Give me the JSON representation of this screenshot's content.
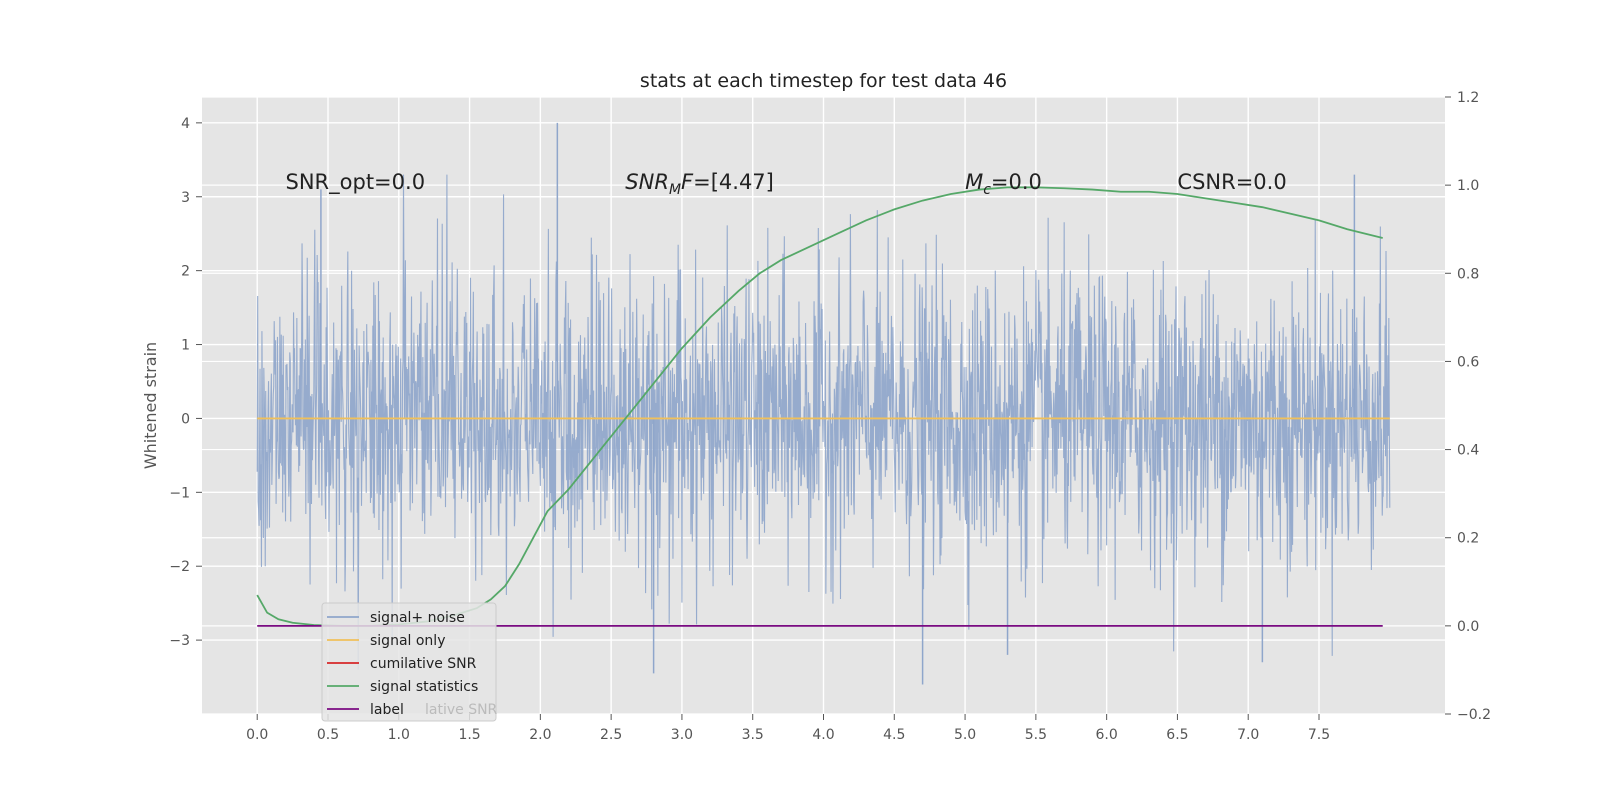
{
  "chart_data": {
    "type": "line",
    "title": "stats at each timestep for test data 46",
    "ylabel": "Whitened strain",
    "xlabel": "",
    "xlim": [
      -0.39,
      8.39
    ],
    "ylim": [
      -4.0,
      4.35
    ],
    "y2lim": [
      -0.2,
      1.2
    ],
    "x_ticks": [
      "0.0",
      "0.5",
      "1.0",
      "1.5",
      "2.0",
      "2.5",
      "3.0",
      "3.5",
      "4.0",
      "4.5",
      "5.0",
      "5.5",
      "6.0",
      "6.5",
      "7.0",
      "7.5"
    ],
    "y_ticks": [
      {
        "v": 4,
        "label": "4"
      },
      {
        "v": 3,
        "label": "3"
      },
      {
        "v": 2,
        "label": "2"
      },
      {
        "v": 1,
        "label": "1"
      },
      {
        "v": 0,
        "label": "0"
      },
      {
        "v": -1,
        "label": "−1"
      },
      {
        "v": -2,
        "label": "−2"
      },
      {
        "v": -3,
        "label": "−3"
      }
    ],
    "y2_ticks": [
      {
        "v": 1.2,
        "label": "1.2"
      },
      {
        "v": 1.0,
        "label": "1.0"
      },
      {
        "v": 0.8,
        "label": "0.8"
      },
      {
        "v": 0.6,
        "label": "0.6"
      },
      {
        "v": 0.4,
        "label": "0.4"
      },
      {
        "v": 0.2,
        "label": "0.2"
      },
      {
        "v": 0.0,
        "label": "0.0"
      },
      {
        "v": -0.2,
        "label": "−0.2"
      }
    ],
    "grid": true,
    "legend_position": "lower-left",
    "noise_range": [
      0.0,
      8.0
    ],
    "series": [
      {
        "name": "signal+ noise",
        "color": "#8fa6cb",
        "axis": "left",
        "note_visual": "dense noise approx ±1.5, peaks to 4.0 and -3.6"
      },
      {
        "name": "signal only",
        "color": "#f0c05a",
        "axis": "left",
        "x": [
          0.0,
          8.0
        ],
        "y": [
          0.0,
          0.0
        ]
      },
      {
        "name": "cumilative SNR",
        "color": "#d62728",
        "axis": "right",
        "x": [],
        "y": []
      },
      {
        "name": "signal statistics",
        "color": "#55a868",
        "axis": "right",
        "x": [
          0.0,
          0.07,
          0.15,
          0.25,
          0.4,
          0.6,
          0.8,
          1.0,
          1.2,
          1.4,
          1.55,
          1.65,
          1.75,
          1.85,
          1.95,
          2.05,
          2.2,
          2.4,
          2.6,
          2.8,
          3.0,
          3.2,
          3.4,
          3.55,
          3.7,
          3.9,
          4.1,
          4.3,
          4.5,
          4.7,
          4.9,
          5.1,
          5.3,
          5.5,
          5.7,
          5.9,
          6.1,
          6.3,
          6.5,
          6.7,
          6.9,
          7.1,
          7.3,
          7.5,
          7.7,
          7.95
        ],
        "y": [
          0.07,
          0.03,
          0.015,
          0.007,
          0.002,
          0.0,
          0.0,
          0.003,
          0.01,
          0.025,
          0.04,
          0.06,
          0.09,
          0.14,
          0.2,
          0.26,
          0.31,
          0.39,
          0.47,
          0.55,
          0.63,
          0.7,
          0.76,
          0.8,
          0.83,
          0.86,
          0.89,
          0.92,
          0.945,
          0.965,
          0.98,
          0.99,
          0.995,
          0.995,
          0.993,
          0.99,
          0.985,
          0.985,
          0.98,
          0.97,
          0.96,
          0.95,
          0.935,
          0.92,
          0.9,
          0.88
        ]
      },
      {
        "name": "label",
        "color": "#7a0b82",
        "axis": "right",
        "x": [
          0.0,
          7.95
        ],
        "y": [
          0.0,
          0.0
        ]
      }
    ],
    "legend": [
      {
        "label": "signal+ noise",
        "color": "#8fa6cb"
      },
      {
        "label": "signal only",
        "color": "#f0c05a"
      },
      {
        "label": "cumilative SNR",
        "color": "#d62728"
      },
      {
        "label": "signal statistics",
        "color": "#55a868"
      },
      {
        "label": "label",
        "color": "#7a0b82"
      }
    ],
    "legend_ghost_text": "lative SNR",
    "annotations": [
      {
        "prefix": "SNR_opt=0.0",
        "italic": "",
        "sub": "",
        "suffix": "",
        "x": 0.2,
        "y": 3.2
      },
      {
        "prefix": "",
        "italic": "SNR",
        "sub": "M",
        "italic2": "F",
        "suffix": "=[4.47]",
        "x": 2.6,
        "y": 3.2
      },
      {
        "prefix": "",
        "italic": "M",
        "sub": "c",
        "italic2": "",
        "suffix": "=0.0",
        "x": 5.0,
        "y": 3.2
      },
      {
        "prefix": "CSNR=0.0",
        "italic": "",
        "sub": "",
        "suffix": "",
        "x": 6.5,
        "y": 3.2
      }
    ]
  }
}
